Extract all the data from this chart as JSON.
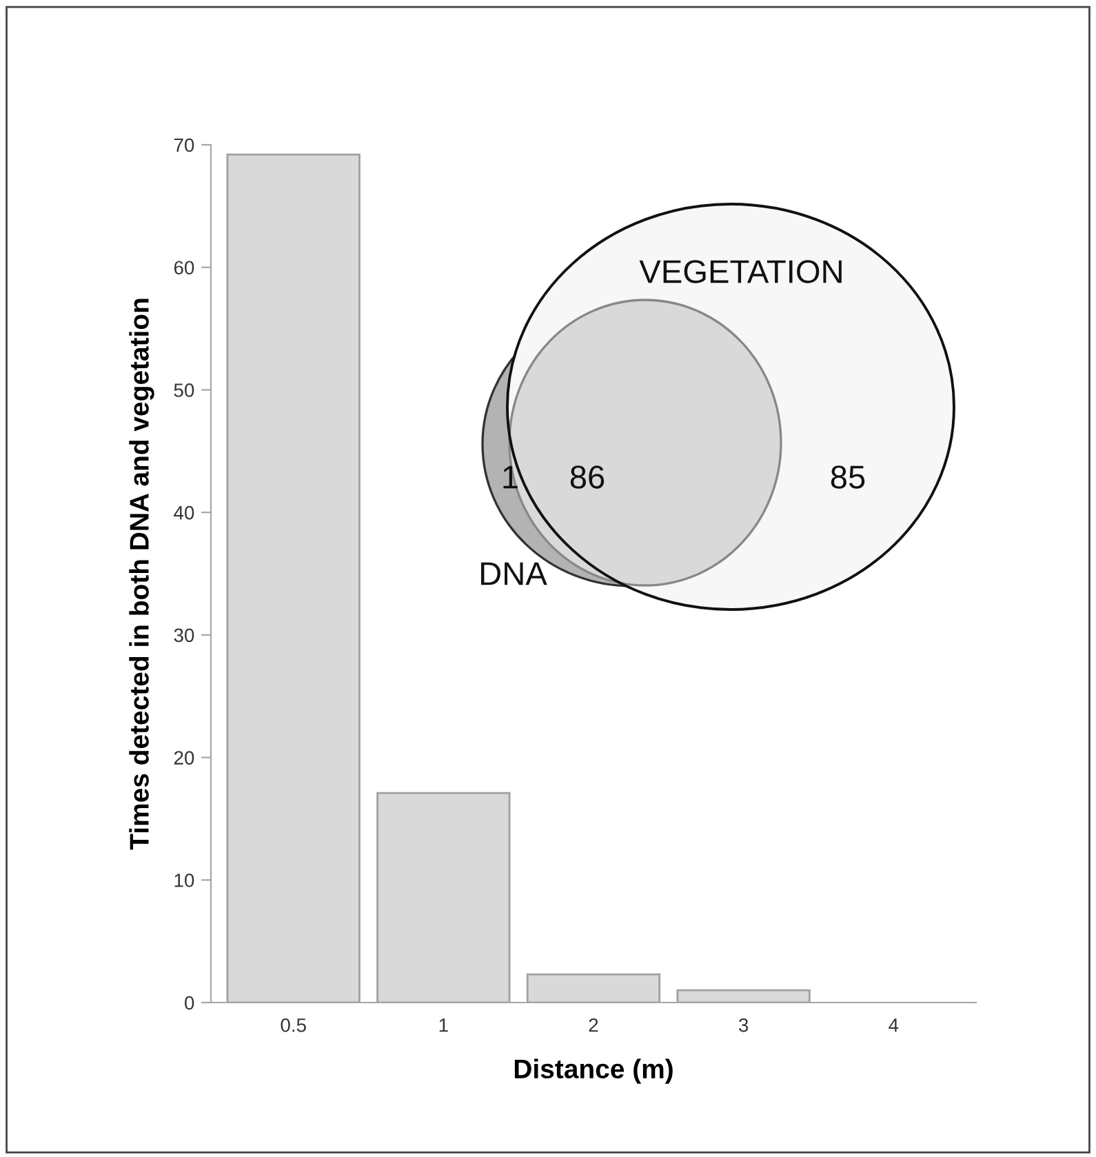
{
  "chart_data": [
    {
      "type": "bar",
      "xlabel": "Distance (m)",
      "ylabel": "Times detected in both DNA and vegetation",
      "categories": [
        "0.5",
        "1",
        "2",
        "3",
        "4"
      ],
      "values": [
        69.2,
        17.1,
        2.3,
        1.0,
        0
      ],
      "color": "#d9d9d9",
      "ylim": [
        0,
        70
      ],
      "yticks": [
        0,
        10,
        20,
        30,
        40,
        50,
        60,
        70
      ],
      "grid": false
    },
    {
      "type": "other",
      "categories": [
        null,
        null,
        null
      ],
      "values": [
        1,
        86,
        85
      ],
      "colors": [
        "#b3b3b3",
        "#d9d9d9",
        "#f7f7f7"
      ],
      "data_labels": true,
      "annotations": [
        "DNA",
        "VEGETATION"
      ]
    }
  ]
}
